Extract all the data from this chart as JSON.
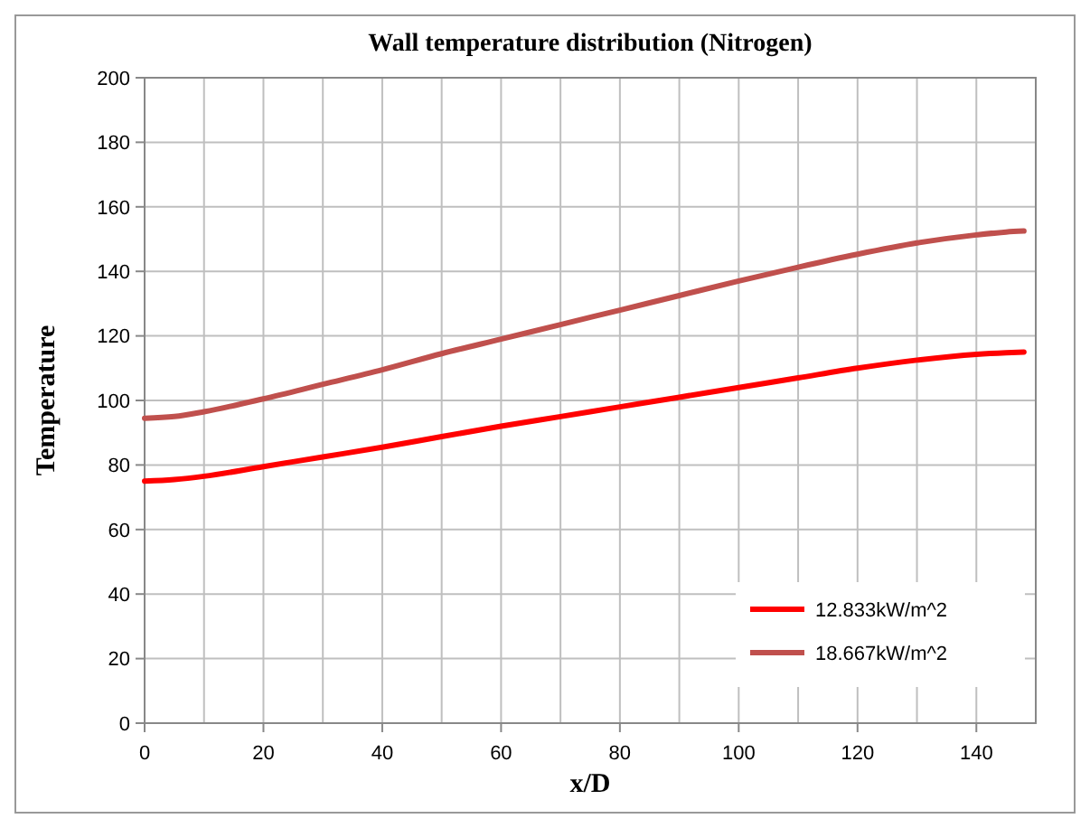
{
  "chart_data": {
    "type": "line",
    "title": "Wall temperature distribution (Nitrogen)",
    "xlabel": "x/D",
    "ylabel": "Temperature",
    "series": [
      {
        "name": "12.833kW/m^2",
        "color": "#ff0000",
        "x": [
          0,
          5,
          10,
          20,
          30,
          40,
          50,
          60,
          70,
          80,
          90,
          100,
          110,
          120,
          130,
          140,
          145,
          148
        ],
        "values": [
          75,
          75.5,
          76.5,
          79.5,
          82.5,
          85.5,
          88.8,
          92,
          95,
          98,
          101,
          104,
          107,
          110,
          112.5,
          114.3,
          114.8,
          115
        ]
      },
      {
        "name": "18.667kW/m^2",
        "color": "#c0504d",
        "x": [
          0,
          5,
          10,
          20,
          30,
          40,
          50,
          60,
          70,
          80,
          90,
          100,
          110,
          120,
          130,
          140,
          145,
          148
        ],
        "values": [
          94.5,
          95,
          96.5,
          100.5,
          105,
          109.5,
          114.5,
          119,
          123.5,
          128,
          132.5,
          137,
          141.3,
          145.3,
          148.8,
          151.3,
          152.2,
          152.5
        ]
      }
    ],
    "xlim": [
      0,
      150
    ],
    "xticks": [
      0,
      20,
      40,
      60,
      80,
      100,
      120,
      140
    ],
    "ylim": [
      0,
      200
    ],
    "yticks": [
      0,
      20,
      40,
      60,
      80,
      100,
      120,
      140,
      160,
      180,
      200
    ],
    "grid": true,
    "legend": "bottom right",
    "marker": "none",
    "line_style": "solid"
  }
}
